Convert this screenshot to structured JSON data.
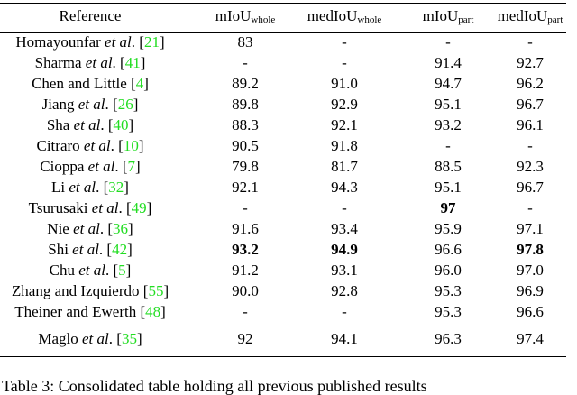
{
  "table": {
    "headers": [
      {
        "main": "Reference",
        "sub": ""
      },
      {
        "main": "mIoU",
        "sub": "whole"
      },
      {
        "main": "medIoU",
        "sub": "whole"
      },
      {
        "main": "mIoU",
        "sub": "part"
      },
      {
        "main": "medIoU",
        "sub": "part"
      }
    ],
    "rows": [
      {
        "name": "Homayounfar",
        "etal": " et al",
        "tail": ". [",
        "cite": "21",
        "close": "]",
        "values": [
          "83",
          "-",
          "-",
          "-"
        ],
        "bold": []
      },
      {
        "name": "Sharma",
        "etal": " et al",
        "tail": ". [",
        "cite": "41",
        "close": "]",
        "values": [
          "-",
          "-",
          "91.4",
          "92.7"
        ],
        "bold": []
      },
      {
        "name": "Chen and Little",
        "etal": "",
        "tail": " [",
        "cite": "4",
        "close": "]",
        "values": [
          "89.2",
          "91.0",
          "94.7",
          "96.2"
        ],
        "bold": []
      },
      {
        "name": "Jiang",
        "etal": " et al",
        "tail": ". [",
        "cite": "26",
        "close": "]",
        "values": [
          "89.8",
          "92.9",
          "95.1",
          "96.7"
        ],
        "bold": []
      },
      {
        "name": "Sha",
        "etal": " et al",
        "tail": ". [",
        "cite": "40",
        "close": "]",
        "values": [
          "88.3",
          "92.1",
          "93.2",
          "96.1"
        ],
        "bold": []
      },
      {
        "name": "Citraro",
        "etal": " et al",
        "tail": ". [",
        "cite": "10",
        "close": "]",
        "values": [
          "90.5",
          "91.8",
          "-",
          "-"
        ],
        "bold": []
      },
      {
        "name": "Cioppa",
        "etal": " et al",
        "tail": ". [",
        "cite": "7",
        "close": "]",
        "values": [
          "79.8",
          "81.7",
          "88.5",
          "92.3"
        ],
        "bold": []
      },
      {
        "name": "Li",
        "etal": " et al",
        "tail": ". [",
        "cite": "32",
        "close": "]",
        "values": [
          "92.1",
          "94.3",
          "95.1",
          "96.7"
        ],
        "bold": []
      },
      {
        "name": "Tsurusaki",
        "etal": " et al",
        "tail": ". [",
        "cite": "49",
        "close": "]",
        "values": [
          "-",
          "-",
          "97",
          "-"
        ],
        "bold": [
          2
        ]
      },
      {
        "name": "Nie",
        "etal": " et al",
        "tail": ". [",
        "cite": "36",
        "close": "]",
        "values": [
          "91.6",
          "93.4",
          "95.9",
          "97.1"
        ],
        "bold": []
      },
      {
        "name": "Shi",
        "etal": " et al",
        "tail": ". [",
        "cite": "42",
        "close": "]",
        "values": [
          "93.2",
          "94.9",
          "96.6",
          "97.8"
        ],
        "bold": [
          0,
          1,
          3
        ]
      },
      {
        "name": "Chu",
        "etal": " et al",
        "tail": ". [",
        "cite": "5",
        "close": "]",
        "values": [
          "91.2",
          "93.1",
          "96.0",
          "97.0"
        ],
        "bold": []
      },
      {
        "name": "Zhang and Izquierdo",
        "etal": "",
        "tail": " [",
        "cite": "55",
        "close": "]",
        "values": [
          "90.0",
          "92.8",
          "95.3",
          "96.9"
        ],
        "bold": []
      },
      {
        "name": "Theiner and Ewerth",
        "etal": "",
        "tail": " [",
        "cite": "48",
        "close": "]",
        "values": [
          "-",
          "-",
          "95.3",
          "96.6"
        ],
        "bold": []
      }
    ],
    "footer_row": {
      "name": "Maglo",
      "etal": " et al",
      "tail": ". [",
      "cite": "35",
      "close": "]",
      "values": [
        "92",
        "94.1",
        "96.3",
        "97.4"
      ],
      "bold": []
    }
  },
  "caption": "Table 3: Consolidated table holding all previous published results"
}
